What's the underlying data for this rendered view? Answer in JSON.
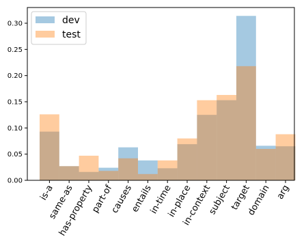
{
  "chart_data": {
    "type": "bar",
    "categories": [
      "is-a",
      "same-as",
      "has-property",
      "part-of",
      "causes",
      "entails",
      "in-time",
      "in-place",
      "in-context",
      "subject",
      "target",
      "domain",
      "arg"
    ],
    "series": [
      {
        "name": "dev",
        "color": "#1f77b4",
        "values": [
          0.093,
          0.027,
          0.016,
          0.024,
          0.063,
          0.038,
          0.023,
          0.069,
          0.125,
          0.153,
          0.314,
          0.066,
          0.065
        ]
      },
      {
        "name": "test",
        "color": "#ff7f0e",
        "values": [
          0.126,
          0.027,
          0.047,
          0.018,
          0.042,
          0.012,
          0.038,
          0.08,
          0.153,
          0.163,
          0.218,
          0.06,
          0.088
        ]
      }
    ],
    "ylim": [
      0,
      0.33
    ],
    "yticks": [
      "0.00",
      "0.05",
      "0.10",
      "0.15",
      "0.20",
      "0.25",
      "0.30"
    ],
    "yticks_values": [
      0,
      0.05,
      0.1,
      0.15,
      0.2,
      0.25,
      0.3
    ],
    "legend_position": "top-left",
    "grid": false,
    "alpha": 0.4
  }
}
